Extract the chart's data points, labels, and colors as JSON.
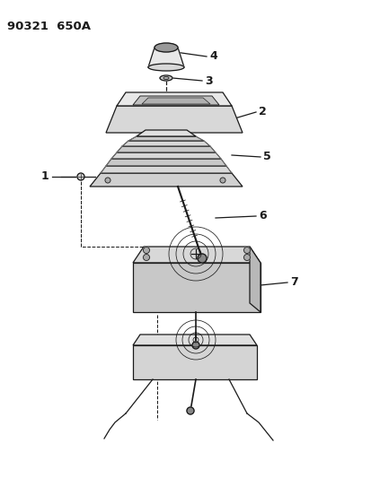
{
  "title": "90321  650A",
  "bg_color": "#ffffff",
  "line_color": "#1a1a1a",
  "title_fontsize": 9.5,
  "fig_width": 4.14,
  "fig_height": 5.33,
  "dpi": 100
}
